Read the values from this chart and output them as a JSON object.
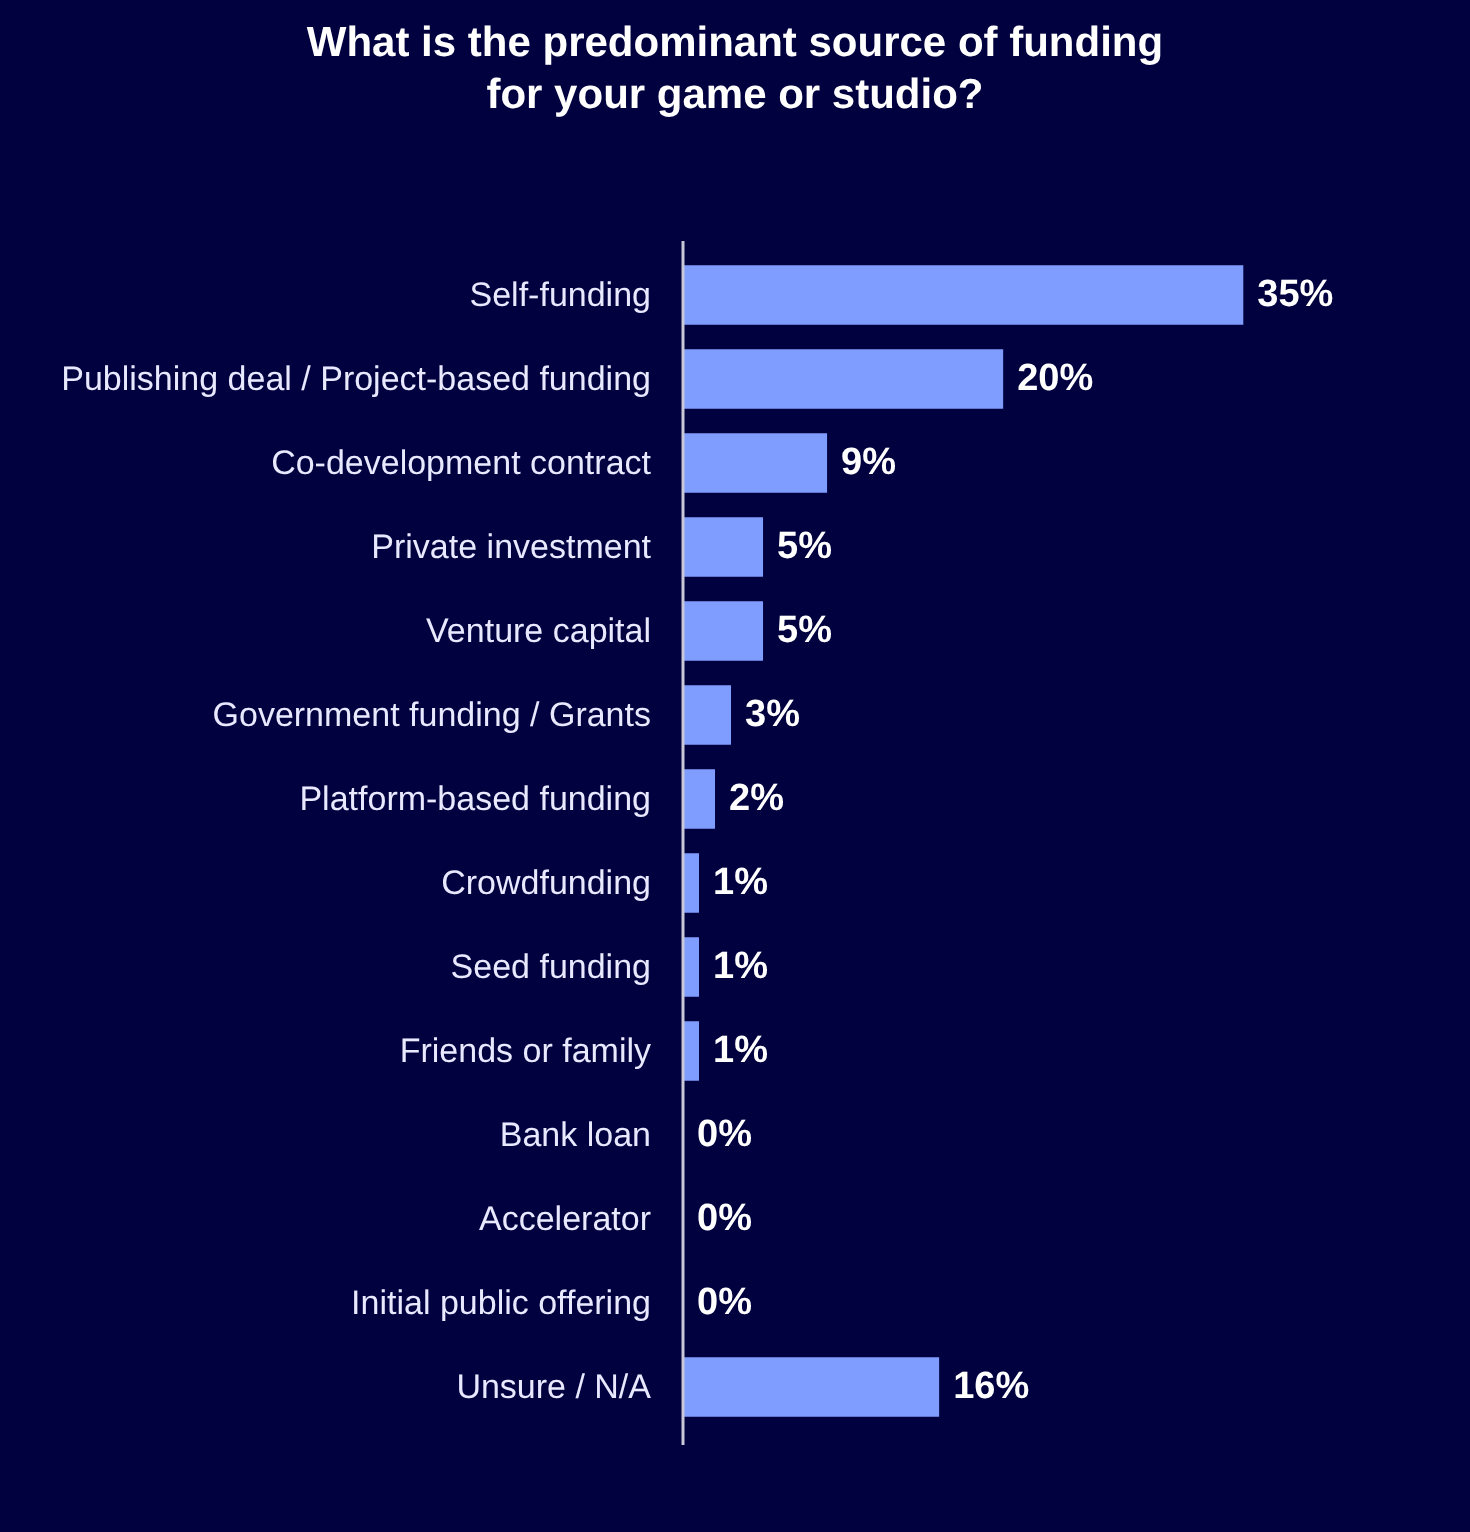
{
  "chart_data": {
    "type": "bar",
    "orientation": "horizontal",
    "title": "What is the predominant source of funding for your game or studio?",
    "categories": [
      "Self-funding",
      "Publishing deal / Project-based funding",
      "Co-development contract",
      "Private investment",
      "Venture capital",
      "Government funding / Grants",
      "Platform-based funding",
      "Crowdfunding",
      "Seed funding",
      "Friends or family",
      "Bank loan",
      "Accelerator",
      "Initial public offering",
      "Unsure / N/A"
    ],
    "values": [
      35,
      20,
      9,
      5,
      5,
      3,
      2,
      1,
      1,
      1,
      0,
      0,
      0,
      16
    ],
    "value_labels": [
      "35%",
      "20%",
      "9%",
      "5%",
      "5%",
      "3%",
      "2%",
      "1%",
      "1%",
      "1%",
      "0%",
      "0%",
      "0%",
      "16%"
    ],
    "color": "#7f9dff",
    "tick_labels": "y"
  }
}
